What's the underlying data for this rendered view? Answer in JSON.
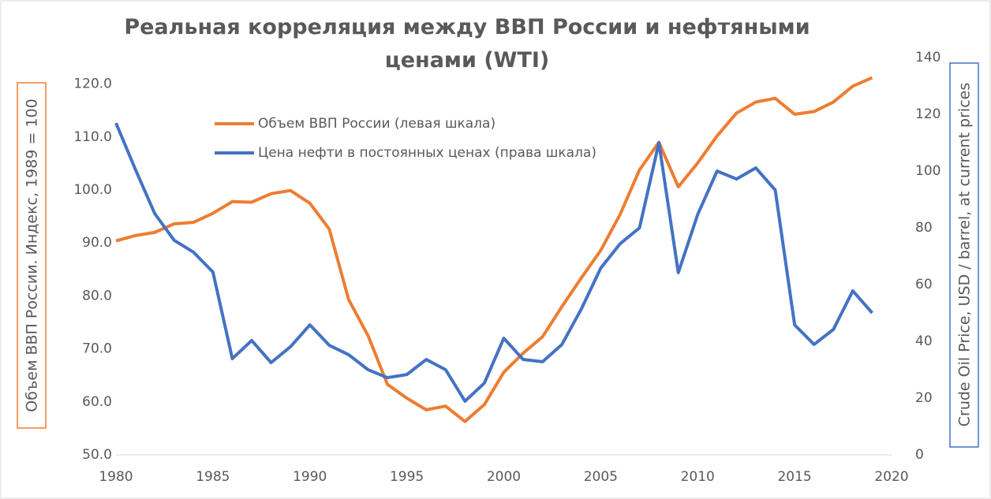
{
  "chart_data": {
    "type": "line",
    "title": "Реальная корреляция между ВВП России и нефтяными ценами (WTI)",
    "y_label": "Объем ВВП России. Индекс, 1989 = 100",
    "y2_label": "Crude Oil Price, USD / barrel, at current prices",
    "x": [
      1980,
      1981,
      1982,
      1983,
      1984,
      1985,
      1986,
      1987,
      1988,
      1989,
      1990,
      1991,
      1992,
      1993,
      1994,
      1995,
      1996,
      1997,
      1998,
      1999,
      2000,
      2001,
      2002,
      2003,
      2004,
      2005,
      2006,
      2007,
      2008,
      2009,
      2010,
      2011,
      2012,
      2013,
      2014,
      2015,
      2016,
      2017,
      2018,
      2019
    ],
    "series": [
      {
        "name": "Объем ВВП России (левая шкала)",
        "color": "#ED7D31",
        "values": [
          90.4,
          91.4,
          92.0,
          93.6,
          93.9,
          95.6,
          97.8,
          97.7,
          99.3,
          99.9,
          97.5,
          92.6,
          79.3,
          72.5,
          63.3,
          60.7,
          58.5,
          59.2,
          56.3,
          59.5,
          65.6,
          69.2,
          72.3,
          78.0,
          83.4,
          88.6,
          95.4,
          103.8,
          109.0,
          100.6,
          105.1,
          110.2,
          114.5,
          116.6,
          117.3,
          114.3,
          114.8,
          116.6,
          119.6,
          121.2
        ]
      },
      {
        "name": "Цена нефти в постоянных ценах (права шкала)",
        "color": "#4472C4",
        "axis": "y2",
        "values": [
          116.9,
          100.6,
          85.0,
          75.6,
          71.4,
          64.4,
          33.9,
          40.3,
          32.5,
          38.1,
          45.8,
          38.6,
          35.3,
          30.0,
          27.2,
          28.3,
          33.6,
          30.0,
          18.9,
          25.3,
          41.1,
          33.6,
          32.8,
          38.9,
          51.4,
          65.8,
          74.4,
          80.0,
          110.0,
          64.2,
          84.7,
          100.0,
          97.2,
          101.1,
          93.3,
          45.8,
          38.9,
          44.2,
          57.8,
          50.0
        ]
      }
    ],
    "xlim": [
      1980,
      2020
    ],
    "xticks": [
      1980,
      1985,
      1990,
      1995,
      2000,
      2005,
      2010,
      2015,
      2020
    ],
    "ylim": [
      50,
      125
    ],
    "yticks": [
      {
        "value": 50,
        "label": "50.0"
      },
      {
        "value": 60,
        "label": "60.0"
      },
      {
        "value": 70,
        "label": "70.0"
      },
      {
        "value": 80,
        "label": "80.0"
      },
      {
        "value": 90,
        "label": "90.0"
      },
      {
        "value": 100,
        "label": "100.0"
      },
      {
        "value": 110,
        "label": "110.0"
      },
      {
        "value": 120,
        "label": "120.0"
      }
    ],
    "y2lim": [
      0,
      140
    ],
    "y2ticks": [
      0,
      20,
      40,
      60,
      80,
      100,
      120,
      140
    ],
    "grid": false
  }
}
